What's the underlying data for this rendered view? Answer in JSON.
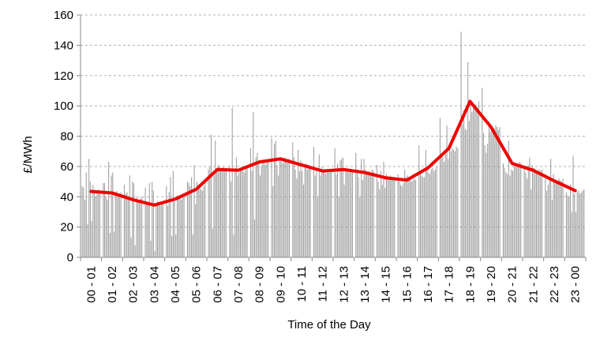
{
  "chart_data": {
    "type": "bar",
    "xlabel": "Time of the Day",
    "ylabel": "£/MWh",
    "ylim": [
      0,
      160
    ],
    "y_ticks": [
      0,
      20,
      40,
      60,
      80,
      100,
      120,
      140,
      160
    ],
    "grid": "horizontal-dashed",
    "categories": [
      "00 - 01",
      "01 - 02",
      "02 - 03",
      "03 - 04",
      "04 - 05",
      "05 - 06",
      "06 - 07",
      "07 - 08",
      "08 - 09",
      "09 - 10",
      "10 - 11",
      "11 - 12",
      "12 - 13",
      "13 - 14",
      "14 - 15",
      "15 - 16",
      "16 - 17",
      "17 - 18",
      "18 - 19",
      "19 - 20",
      "20 - 21",
      "21 - 22",
      "22 - 23",
      "23 - 00"
    ],
    "bar_color": "#a0a0a0",
    "line_color": "#ee0000",
    "bars_per_category": 14,
    "bars": [
      [
        47,
        46,
        38,
        56,
        22,
        65,
        50,
        24,
        48,
        44,
        40,
        42,
        45,
        44
      ],
      [
        49,
        49,
        40,
        38,
        63,
        16,
        54,
        56,
        17,
        42,
        44,
        40,
        41,
        43
      ],
      [
        48,
        42,
        43,
        40,
        54,
        13,
        50,
        49,
        8,
        40,
        38,
        37,
        39,
        40
      ],
      [
        46,
        35,
        36,
        49,
        11,
        50,
        44,
        4,
        36,
        37,
        35,
        34,
        36,
        35
      ],
      [
        47,
        34,
        43,
        53,
        14,
        57,
        37,
        15,
        41,
        40,
        39,
        38,
        40,
        41
      ],
      [
        50,
        49,
        47,
        53,
        15,
        61,
        35,
        50,
        48,
        46,
        45,
        44,
        47,
        50
      ],
      [
        58,
        60,
        81,
        19,
        54,
        77,
        57,
        61,
        60,
        59,
        58,
        60,
        57,
        59
      ],
      [
        60,
        50,
        99,
        15,
        58,
        66,
        54,
        56,
        57,
        58,
        57,
        56,
        58,
        59
      ],
      [
        72,
        57,
        96,
        25,
        66,
        69,
        62,
        54,
        60,
        62,
        63,
        61,
        64,
        63
      ],
      [
        79,
        47,
        75,
        77,
        61,
        54,
        65,
        66,
        62,
        64,
        66,
        63,
        65,
        65
      ],
      [
        76,
        66,
        58,
        52,
        71,
        57,
        64,
        57,
        48,
        60,
        62,
        58,
        61,
        60
      ],
      [
        73,
        54,
        57,
        40,
        68,
        54,
        60,
        56,
        58,
        55,
        57,
        56,
        58,
        57
      ],
      [
        72,
        55,
        62,
        40,
        64,
        65,
        66,
        48,
        57,
        58,
        56,
        57,
        58,
        58
      ],
      [
        69,
        58,
        53,
        40,
        65,
        51,
        65,
        58,
        56,
        55,
        57,
        56,
        58,
        57
      ],
      [
        61,
        50,
        45,
        57,
        48,
        63,
        46,
        55,
        53,
        52,
        54,
        53,
        52,
        53
      ],
      [
        55,
        50,
        48,
        47,
        49,
        58,
        53,
        54,
        51,
        52,
        50,
        51,
        52,
        51
      ],
      [
        74,
        56,
        54,
        53,
        53,
        71,
        60,
        56,
        55,
        58,
        59,
        57,
        58,
        60
      ],
      [
        92,
        68,
        66,
        63,
        68,
        87,
        65,
        74,
        70,
        72,
        71,
        70,
        73,
        72
      ],
      [
        149,
        88,
        97,
        85,
        84,
        129,
        90,
        102,
        96,
        100,
        98,
        101,
        99,
        103
      ],
      [
        112,
        82,
        74,
        69,
        75,
        90,
        83,
        86,
        84,
        85,
        87,
        86,
        84,
        86
      ],
      [
        62,
        59,
        56,
        55,
        77,
        54,
        58,
        57,
        60,
        61,
        62,
        60,
        63,
        62
      ],
      [
        60,
        56,
        52,
        61,
        66,
        45,
        61,
        59,
        58,
        57,
        56,
        58,
        57,
        58
      ],
      [
        55,
        44,
        48,
        52,
        65,
        38,
        55,
        51,
        50,
        49,
        52,
        51,
        50,
        52
      ],
      [
        43,
        41,
        40,
        48,
        30,
        67,
        42,
        30,
        43,
        44,
        42,
        43,
        44,
        45
      ]
    ],
    "series": [
      {
        "name": "",
        "type": "line",
        "values": [
          43.5,
          42.5,
          38,
          34.5,
          38.5,
          45,
          58,
          57.5,
          63,
          65,
          61,
          57,
          58,
          56,
          52.5,
          51,
          59,
          72,
          103,
          86,
          62,
          57.5,
          50.5,
          44
        ]
      }
    ]
  }
}
